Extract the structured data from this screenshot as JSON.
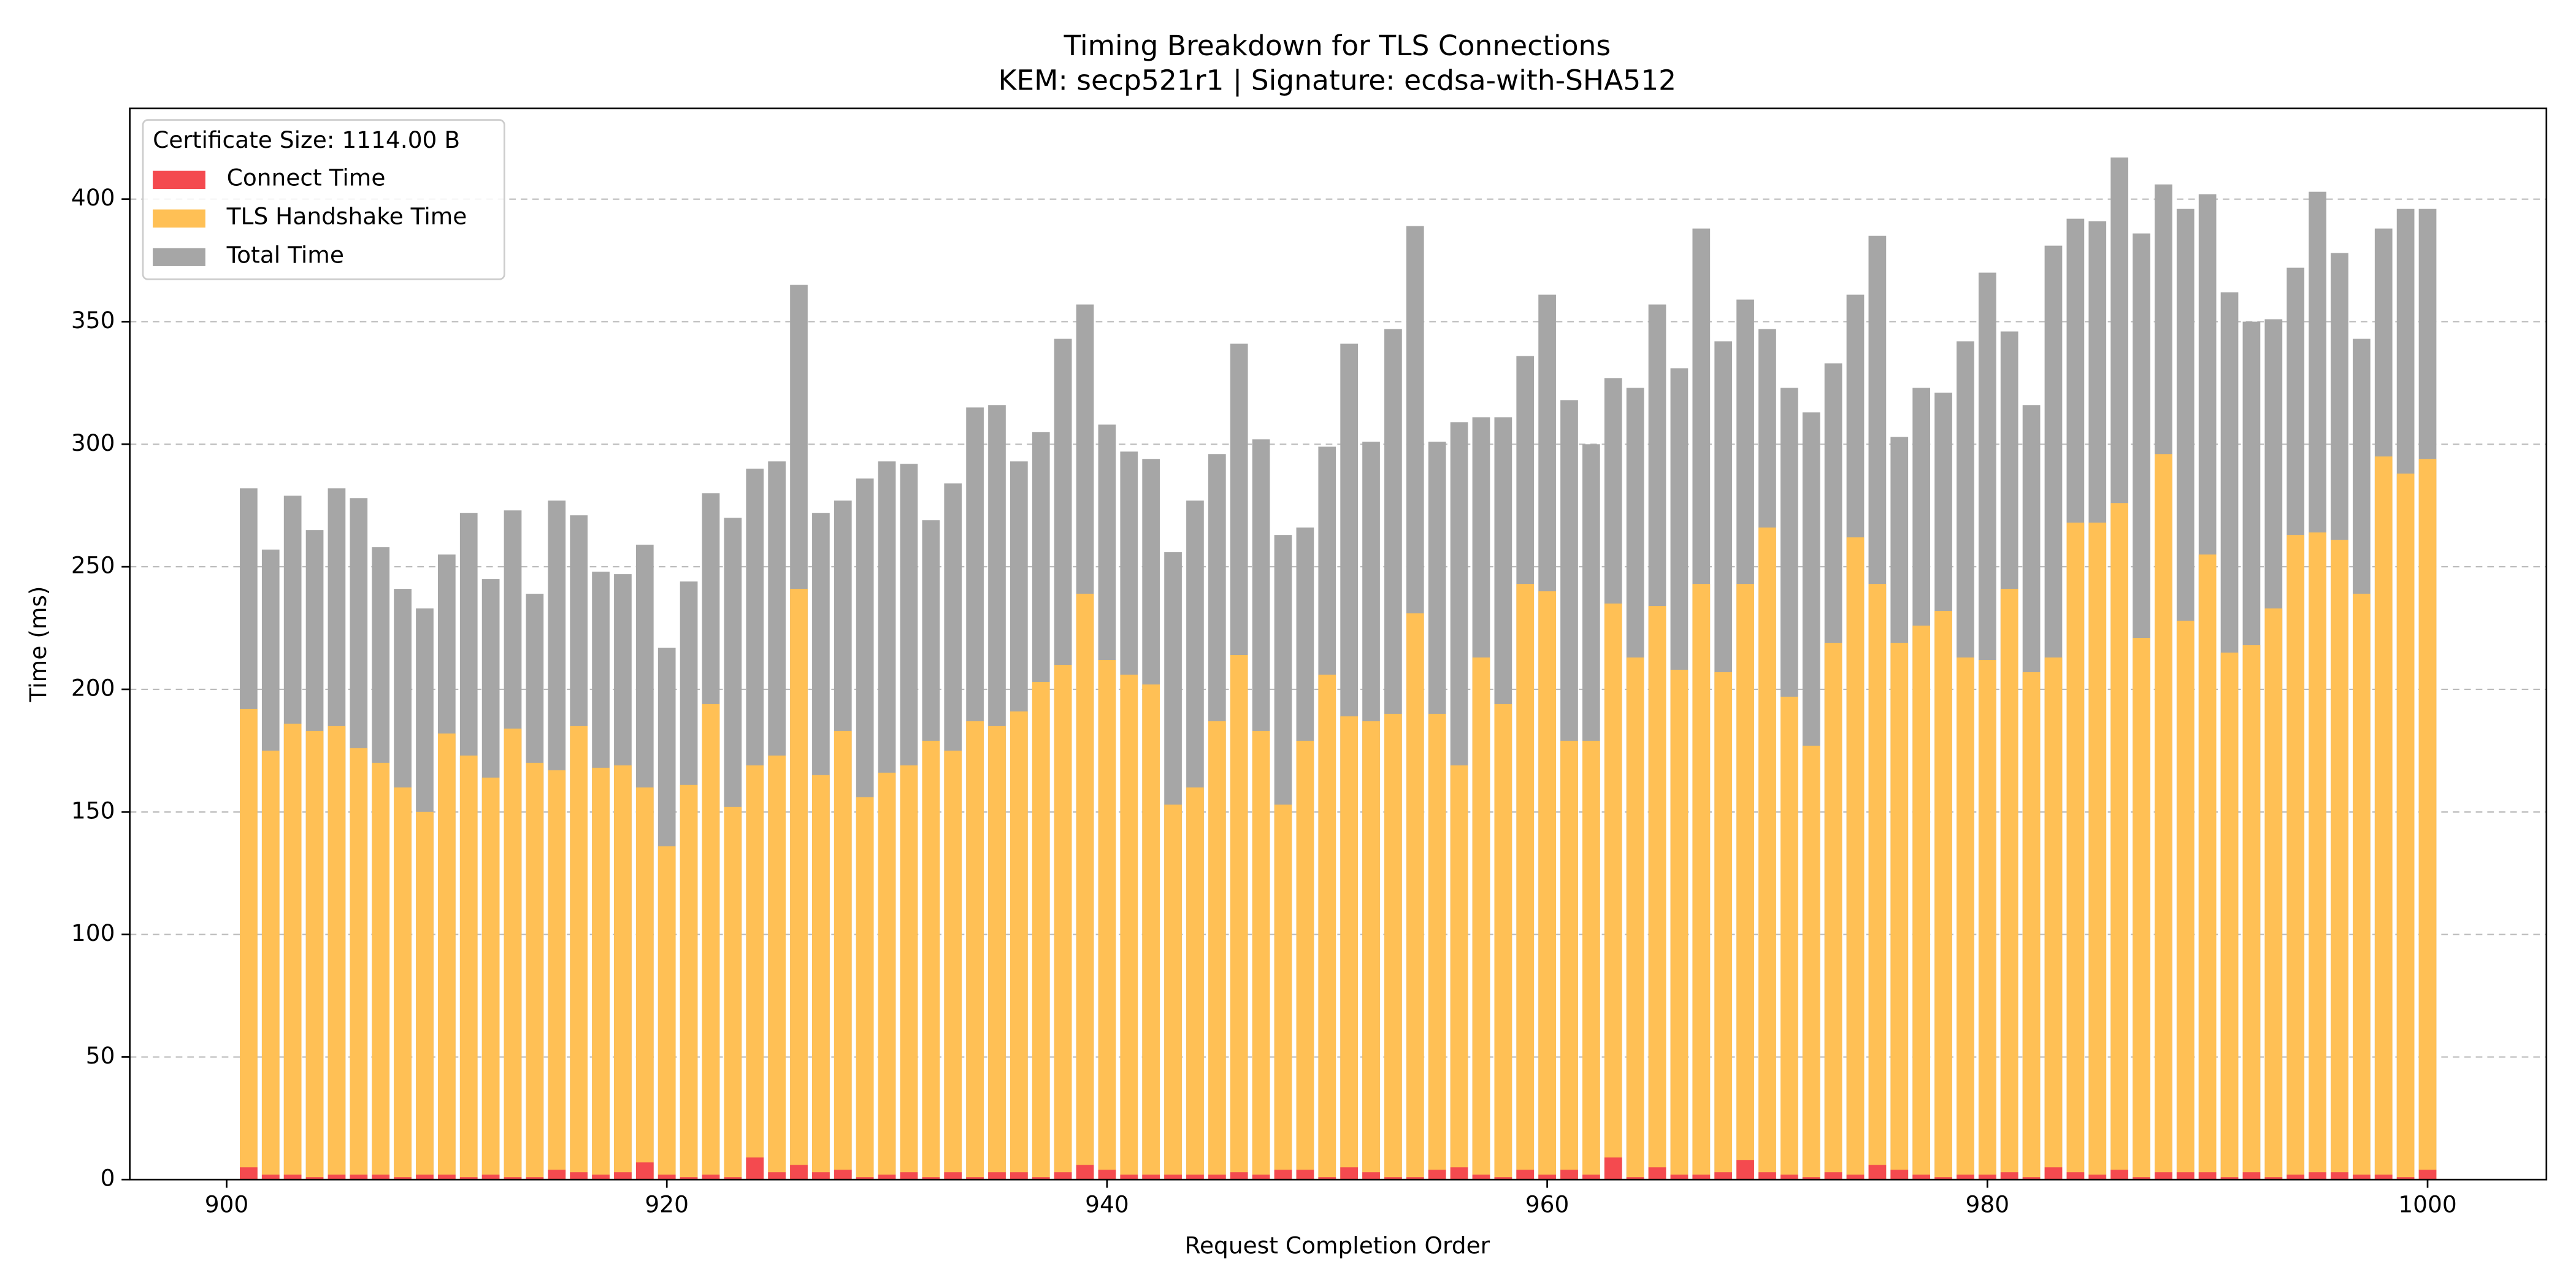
{
  "chart_data": {
    "type": "bar",
    "title": "Timing Breakdown for TLS Connections",
    "subtitle": "KEM: secp521r1 | Signature: ecdsa-with-SHA512",
    "x_label": "Request Completion Order",
    "y_label": "Time (ms)",
    "legend_title": "Certificate Size: 1114.00 B",
    "legend_position": "upper left",
    "grid": true,
    "x": [
      901,
      902,
      903,
      904,
      905,
      906,
      907,
      908,
      909,
      910,
      911,
      912,
      913,
      914,
      915,
      916,
      917,
      918,
      919,
      920,
      921,
      922,
      923,
      924,
      925,
      926,
      927,
      928,
      929,
      930,
      931,
      932,
      933,
      934,
      935,
      936,
      937,
      938,
      939,
      940,
      941,
      942,
      943,
      944,
      945,
      946,
      947,
      948,
      949,
      950,
      951,
      952,
      953,
      954,
      955,
      956,
      957,
      958,
      959,
      960,
      961,
      962,
      963,
      964,
      965,
      966,
      967,
      968,
      969,
      970,
      971,
      972,
      973,
      974,
      975,
      976,
      977,
      978,
      979,
      980,
      981,
      982,
      983,
      984,
      985,
      986,
      987,
      988,
      989,
      990,
      991,
      992,
      993,
      994,
      995,
      996,
      997,
      998,
      999,
      1000
    ],
    "series": [
      {
        "name": "Connect Time",
        "color": "#f44a4f",
        "values": [
          5,
          2,
          2,
          1,
          2,
          2,
          2,
          1,
          2,
          2,
          1,
          2,
          1,
          1,
          4,
          3,
          2,
          3,
          7,
          2,
          1,
          2,
          1,
          9,
          3,
          6,
          3,
          4,
          1,
          2,
          3,
          1,
          3,
          1,
          3,
          3,
          1,
          3,
          6,
          4,
          2,
          2,
          2,
          2,
          2,
          3,
          2,
          4,
          4,
          1,
          5,
          3,
          1,
          1,
          4,
          5,
          2,
          1,
          4,
          2,
          4,
          2,
          9,
          1,
          5,
          2,
          2,
          3,
          8,
          3,
          2,
          1,
          3,
          2,
          6,
          4,
          2,
          1,
          2,
          2,
          3,
          1,
          5,
          3,
          2,
          4,
          1,
          3,
          3,
          3,
          1,
          3,
          1,
          2,
          3,
          3,
          2,
          2,
          1,
          4
        ]
      },
      {
        "name": "TLS Handshake Time",
        "color": "#ffc055",
        "values": [
          192,
          175,
          186,
          183,
          185,
          176,
          170,
          160,
          150,
          182,
          173,
          164,
          184,
          170,
          167,
          185,
          168,
          169,
          160,
          136,
          161,
          194,
          152,
          169,
          173,
          241,
          165,
          183,
          156,
          166,
          169,
          179,
          175,
          187,
          185,
          191,
          203,
          210,
          239,
          212,
          206,
          202,
          153,
          160,
          187,
          214,
          183,
          153,
          179,
          206,
          189,
          187,
          190,
          231,
          190,
          169,
          213,
          194,
          243,
          240,
          179,
          179,
          235,
          213,
          234,
          208,
          243,
          207,
          243,
          266,
          197,
          177,
          219,
          262,
          243,
          219,
          226,
          232,
          213,
          212,
          241,
          207,
          213,
          268,
          268,
          276,
          221,
          296,
          228,
          255,
          215,
          218,
          233,
          263,
          264,
          261,
          239,
          295,
          288,
          294
        ]
      },
      {
        "name": "Total Time",
        "color": "#a6a6a6",
        "values": [
          282,
          257,
          279,
          265,
          282,
          278,
          258,
          241,
          233,
          255,
          272,
          245,
          273,
          239,
          277,
          271,
          248,
          247,
          259,
          217,
          244,
          280,
          270,
          290,
          293,
          365,
          272,
          277,
          286,
          293,
          292,
          269,
          284,
          315,
          316,
          293,
          305,
          343,
          357,
          308,
          297,
          294,
          256,
          277,
          296,
          341,
          302,
          263,
          266,
          299,
          341,
          301,
          347,
          389,
          301,
          309,
          311,
          311,
          336,
          361,
          318,
          300,
          327,
          323,
          357,
          331,
          388,
          342,
          359,
          347,
          323,
          313,
          333,
          361,
          385,
          303,
          323,
          321,
          342,
          370,
          346,
          316,
          381,
          392,
          391,
          417,
          386,
          406,
          396,
          402,
          362,
          350,
          351,
          372,
          403,
          378,
          343,
          388,
          396,
          396
        ]
      }
    ],
    "xlim": [
      895.6,
      1005.4
    ],
    "xticks": [
      900,
      920,
      940,
      960,
      980,
      1000
    ],
    "ylim": [
      0,
      437
    ],
    "yticks": [
      0,
      50,
      100,
      150,
      200,
      250,
      300,
      350,
      400
    ]
  }
}
